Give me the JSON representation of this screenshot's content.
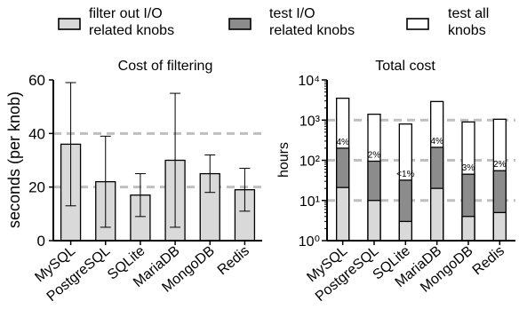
{
  "legend": {
    "placement": "top",
    "entries": [
      {
        "label_lines": [
          "filter out I/O",
          "related knobs"
        ],
        "color": "#d9d9d9"
      },
      {
        "label_lines": [
          "test I/O",
          "related knobs"
        ],
        "color": "#8c8c8c"
      },
      {
        "label_lines": [
          "test all",
          "knobs"
        ],
        "color": "#ffffff"
      }
    ]
  },
  "colors": {
    "filter": "#d9d9d9",
    "io": "#8c8c8c",
    "all": "#ffffff",
    "gridline": "#bfbfbf"
  },
  "chart_data": [
    {
      "type": "bar",
      "title": "Cost of filtering",
      "ylabel": "seconds (per knob)",
      "xlabel": "",
      "categories": [
        "MySQL",
        "PostgreSQL",
        "SQLite",
        "MariaDB",
        "MongoDB",
        "Redis"
      ],
      "ylim": [
        0,
        60
      ],
      "yticks": [
        0,
        20,
        40,
        60
      ],
      "grid_lines_at": [
        20,
        40
      ],
      "grid_style": "dashed",
      "series": [
        {
          "values": [
            36,
            22,
            17,
            30,
            25,
            19
          ],
          "error_low": [
            13,
            5,
            9,
            5,
            18,
            11
          ],
          "error_high": [
            59,
            39,
            25,
            55,
            32,
            27
          ]
        }
      ]
    },
    {
      "type": "bar",
      "title": "Total cost",
      "ylabel": "hours",
      "xlabel": "",
      "yscale": "log",
      "categories": [
        "MySQL",
        "PostgreSQL",
        "SQLite",
        "MariaDB",
        "MongoDB",
        "Redis"
      ],
      "ylim": [
        1,
        10000
      ],
      "yticks": [
        "10⁰",
        "10¹",
        "10²",
        "10³",
        "10⁴"
      ],
      "grid_lines_at": [
        10,
        100,
        1000
      ],
      "grid_style": "dashed",
      "series": [
        {
          "values": [
            3500,
            1400,
            800,
            2900,
            900,
            1050
          ]
        },
        {
          "values": [
            200,
            95,
            32,
            210,
            45,
            55
          ]
        },
        {
          "values": [
            21,
            10,
            3,
            20,
            4,
            5
          ]
        }
      ],
      "annotations": [
        "4%",
        "2%",
        "<1%",
        "4%",
        "3%",
        "2%"
      ]
    }
  ]
}
